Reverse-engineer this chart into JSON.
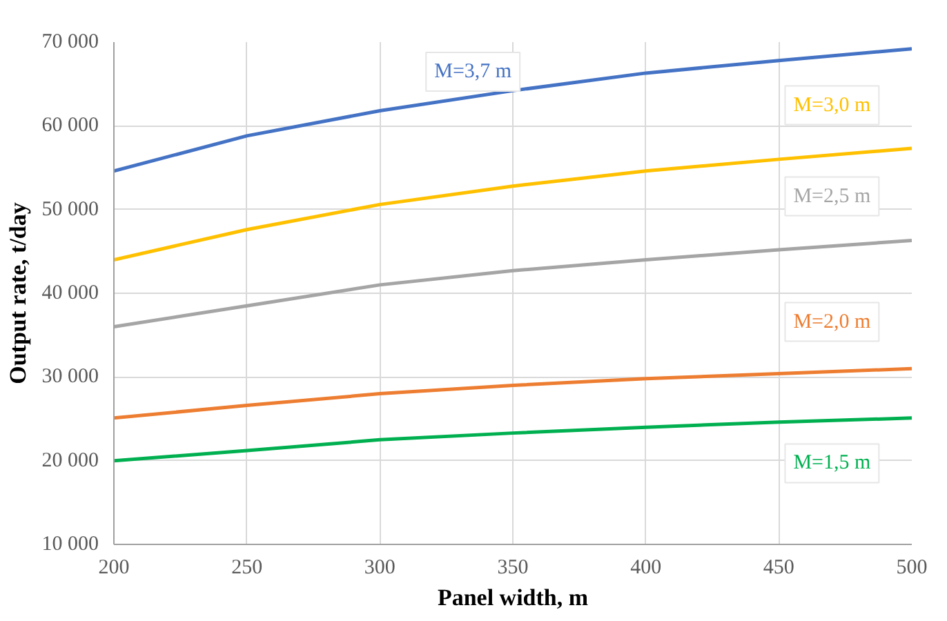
{
  "chart_data": {
    "type": "line",
    "xlabel": "Panel width, m",
    "ylabel": "Output rate, t/day",
    "x": [
      200,
      250,
      300,
      350,
      400,
      450,
      500
    ],
    "series": [
      {
        "name": "M=3,7 m",
        "color": "#4472c4",
        "values": [
          54600,
          58800,
          61800,
          64200,
          66300,
          67800,
          69200
        ]
      },
      {
        "name": "M=3,0 m",
        "color": "#ffc000",
        "values": [
          44000,
          47600,
          50600,
          52800,
          54600,
          56000,
          57300
        ]
      },
      {
        "name": "M=2,5 m",
        "color": "#a5a5a5",
        "values": [
          36000,
          38500,
          41000,
          42700,
          44000,
          45200,
          46300
        ]
      },
      {
        "name": "M=2,0 m",
        "color": "#ed7d31",
        "values": [
          25100,
          26600,
          28000,
          29000,
          29800,
          30400,
          31000
        ]
      },
      {
        "name": "M=1,5 m",
        "color": "#00b050",
        "values": [
          20000,
          21200,
          22500,
          23300,
          24000,
          24600,
          25100
        ]
      }
    ],
    "xlim": [
      200,
      500
    ],
    "xticks": [
      200,
      250,
      300,
      350,
      400,
      450,
      500
    ],
    "ylim": [
      10000,
      70000
    ],
    "yticks": [
      {
        "value": 10000,
        "label": "10 000"
      },
      {
        "value": 20000,
        "label": "20 000"
      },
      {
        "value": 30000,
        "label": "30 000"
      },
      {
        "value": 40000,
        "label": "40 000"
      },
      {
        "value": 50000,
        "label": "50 000"
      },
      {
        "value": 60000,
        "label": "60 000"
      },
      {
        "value": 70000,
        "label": "70 000"
      }
    ],
    "grid": true,
    "marker": "none",
    "line_style": "solid"
  }
}
